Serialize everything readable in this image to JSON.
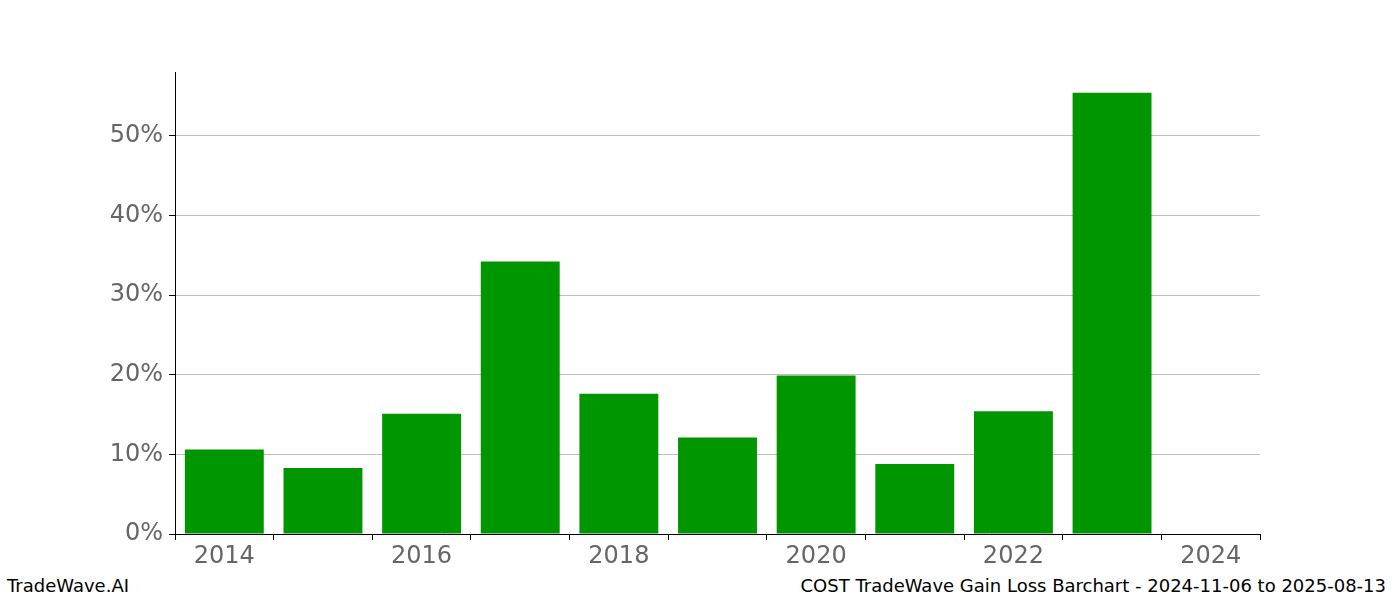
{
  "chart_data": {
    "type": "bar",
    "categories": [
      "2014",
      null,
      "2016",
      null,
      "2018",
      null,
      "2020",
      null,
      "2022",
      null,
      "2024"
    ],
    "values": [
      10.6,
      8.3,
      15.1,
      34.2,
      17.6,
      12.1,
      19.9,
      8.8,
      15.4,
      55.4,
      null
    ],
    "color": "#009600",
    "ylim": [
      0,
      58
    ],
    "yticks": [
      {
        "value": 0,
        "label": "0%"
      },
      {
        "value": 10,
        "label": "10%"
      },
      {
        "value": 20,
        "label": "20%"
      },
      {
        "value": 30,
        "label": "30%"
      },
      {
        "value": 40,
        "label": "40%"
      },
      {
        "value": 50,
        "label": "50%"
      }
    ],
    "grid": true,
    "annotations": [
      "TradeWave.AI",
      "COST TradeWave Gain Loss Barchart - 2024-11-06 to 2025-08-13"
    ]
  }
}
